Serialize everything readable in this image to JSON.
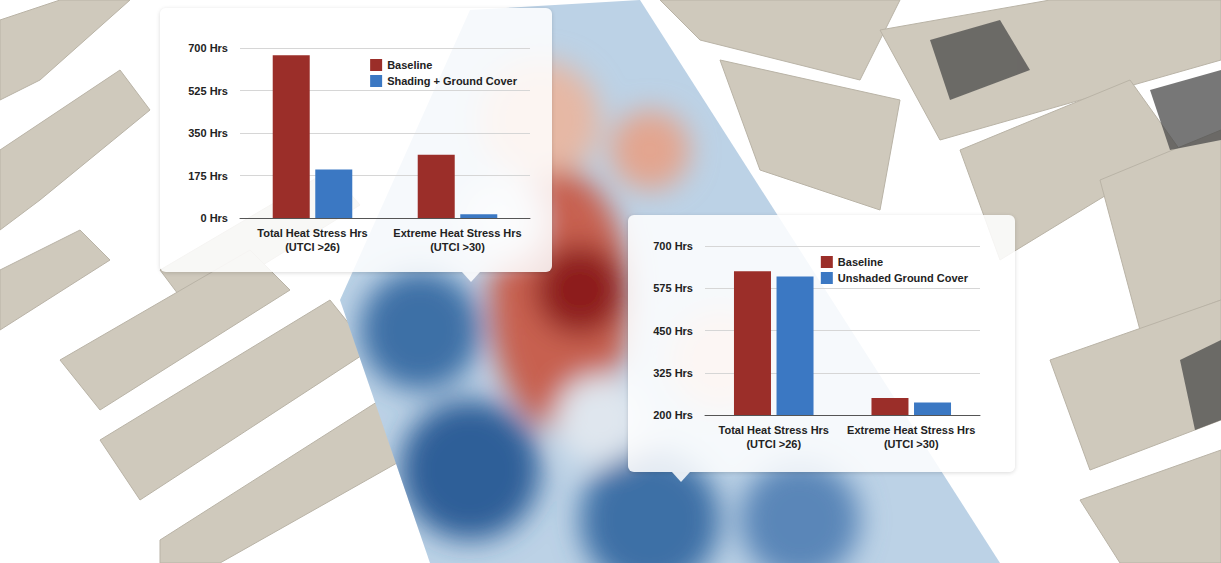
{
  "chart_data": [
    {
      "type": "bar",
      "categories": [
        "Total Heat Stress Hrs (UTCI >26)",
        "Extreme Heat Stress Hrs (UTCI >30)"
      ],
      "series": [
        {
          "name": "Baseline",
          "color": "#9b2e29",
          "values": [
            670,
            260
          ]
        },
        {
          "name": "Shading + Ground Cover",
          "color": "#3b78c3",
          "values": [
            200,
            15
          ]
        }
      ],
      "ylim": [
        0,
        700
      ],
      "yticks": [
        {
          "value": 0,
          "label": "0 Hrs"
        },
        {
          "value": 175,
          "label": "175 Hrs"
        },
        {
          "value": 350,
          "label": "350 Hrs"
        },
        {
          "value": 525,
          "label": "525 Hrs"
        },
        {
          "value": 700,
          "label": "700 Hrs"
        }
      ],
      "grid": true,
      "legend": "upper right"
    },
    {
      "type": "bar",
      "categories": [
        "Total Heat Stress Hrs (UTCI >26)",
        "Extreme Heat Stress Hrs (UTCI >30)"
      ],
      "series": [
        {
          "name": "Baseline",
          "color": "#9b2e29",
          "values": [
            625,
            250
          ]
        },
        {
          "name": "Unshaded Ground Cover",
          "color": "#3b78c3",
          "values": [
            610,
            237
          ]
        }
      ],
      "ylim": [
        200,
        700
      ],
      "yticks": [
        {
          "value": 200,
          "label": "200 Hrs"
        },
        {
          "value": 325,
          "label": "325 Hrs"
        },
        {
          "value": 450,
          "label": "450 Hrs"
        },
        {
          "value": 575,
          "label": "575 Hrs"
        },
        {
          "value": 700,
          "label": "700 Hrs"
        }
      ],
      "grid": true,
      "legend": "upper right"
    }
  ]
}
